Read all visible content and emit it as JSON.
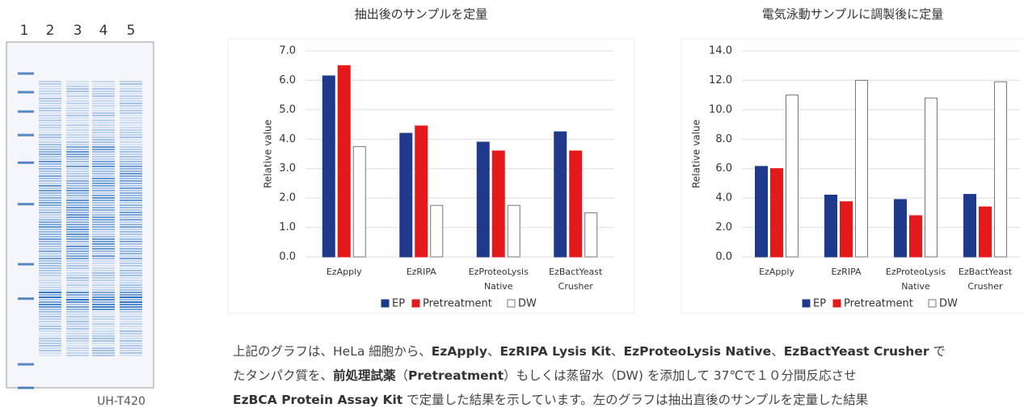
{
  "gel": {
    "lanes": [
      "1",
      "2",
      "3",
      "4",
      "5"
    ],
    "caption": "UH-T420"
  },
  "chart_data": [
    {
      "type": "bar",
      "title": "抽出後のサンプルを定量",
      "ylabel": "Relative value",
      "categories": [
        [
          "EzApply"
        ],
        [
          "EzRIPA"
        ],
        [
          "EzProteoLysis",
          "Native"
        ],
        [
          "EzBactYeast",
          "Crusher"
        ]
      ],
      "series": [
        {
          "name": "EP",
          "color": "#1f3a8a",
          "values": [
            6.15,
            4.2,
            3.9,
            4.25
          ]
        },
        {
          "name": "Pretreatment",
          "color": "#e3191b",
          "values": [
            6.5,
            4.45,
            3.6,
            3.6
          ]
        },
        {
          "name": "DW",
          "color": "#ffffff",
          "values": [
            3.75,
            1.75,
            1.75,
            1.5
          ]
        }
      ],
      "ylim": [
        0,
        7
      ],
      "yticks": [
        {
          "value": 0,
          "label": "0.0"
        },
        {
          "value": 1,
          "label": "1.0"
        },
        {
          "value": 2,
          "label": "2.0"
        },
        {
          "value": 3,
          "label": "3.0"
        },
        {
          "value": 4,
          "label": "4.0"
        },
        {
          "value": 5,
          "label": "5.0"
        },
        {
          "value": 6,
          "label": "6.0"
        },
        {
          "value": 7,
          "label": "7.0"
        }
      ],
      "grid": true
    },
    {
      "type": "bar",
      "title": "電気泳動サンプルに調製後に定量",
      "ylabel": "Relative value",
      "categories": [
        [
          "EzApply"
        ],
        [
          "EzRIPA"
        ],
        [
          "EzProteoLysis",
          "Native"
        ],
        [
          "EzBactYeast",
          "Crusher"
        ]
      ],
      "series": [
        {
          "name": "EP",
          "color": "#1f3a8a",
          "values": [
            6.15,
            4.2,
            3.9,
            4.25
          ]
        },
        {
          "name": "Pretreatment",
          "color": "#e3191b",
          "values": [
            6.0,
            3.75,
            2.8,
            3.4
          ]
        },
        {
          "name": "DW",
          "color": "#ffffff",
          "values": [
            11.0,
            12.0,
            10.8,
            11.9
          ]
        }
      ],
      "ylim": [
        0,
        14
      ],
      "yticks": [
        {
          "value": 0,
          "label": "0.0"
        },
        {
          "value": 2,
          "label": "2.0"
        },
        {
          "value": 4,
          "label": "4.0"
        },
        {
          "value": 6,
          "label": "6.0"
        },
        {
          "value": 8,
          "label": "8.0"
        },
        {
          "value": 10,
          "label": "10.0"
        },
        {
          "value": 12,
          "label": "12.0"
        },
        {
          "value": 14,
          "label": "14.0"
        }
      ],
      "grid": true
    }
  ],
  "paragraph": {
    "lines": [
      [
        {
          "text": "上記のグラフは、HeLa 細胞から、",
          "bold": false
        },
        {
          "text": "EzApply",
          "bold": true
        },
        {
          "text": "、",
          "bold": false
        },
        {
          "text": "EzRIPA Lysis Kit",
          "bold": true
        },
        {
          "text": "、",
          "bold": false
        },
        {
          "text": "EzProteoLysis Native",
          "bold": true
        },
        {
          "text": "、",
          "bold": false
        },
        {
          "text": "EzBactYeast Crusher",
          "bold": true
        },
        {
          "text": " で",
          "bold": false
        }
      ],
      [
        {
          "text": "たタンパク質を、",
          "bold": false
        },
        {
          "text": "前処理試薬",
          "bold": true
        },
        {
          "text": "（",
          "bold": false
        },
        {
          "text": "Pretreatment",
          "bold": true
        },
        {
          "text": "）もしくは蒸留水（DW) を添加して 37℃で１０分間反応させ",
          "bold": false
        }
      ],
      [
        {
          "text": "EzBCA Protein Assay Kit",
          "bold": true
        },
        {
          "text": " で定量した結果を示しています。左のグラフは抽出直後のサンプルを定量した結果",
          "bold": false
        }
      ]
    ]
  }
}
